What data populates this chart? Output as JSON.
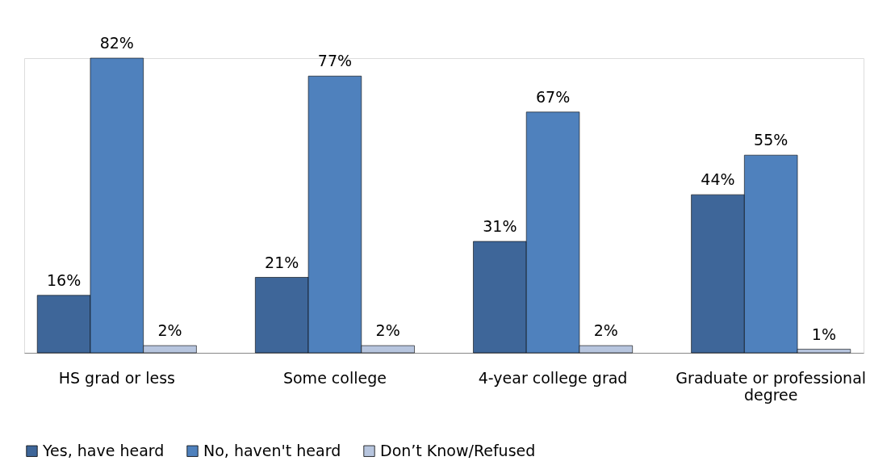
{
  "chart_data": {
    "type": "bar",
    "categories": [
      "HS grad or less",
      "Some college",
      "4-year college grad",
      "Graduate or professional degree"
    ],
    "series": [
      {
        "name": "Yes, have heard",
        "color": "#3e6699",
        "values": [
          16,
          21,
          31,
          44
        ],
        "value_labels": [
          "16%",
          "21%",
          "31%",
          "44%"
        ]
      },
      {
        "name": "No, haven't heard",
        "color": "#4f81bd",
        "values": [
          82,
          77,
          67,
          55
        ],
        "value_labels": [
          "82%",
          "77%",
          "67%",
          "55%"
        ]
      },
      {
        "name": "Don’t Know/Refused",
        "color": "#b7c5de",
        "values": [
          2,
          2,
          2,
          1
        ],
        "value_labels": [
          "2%",
          "2%",
          "2%",
          "1%"
        ]
      }
    ],
    "legend": "bottom",
    "grid": false
  }
}
